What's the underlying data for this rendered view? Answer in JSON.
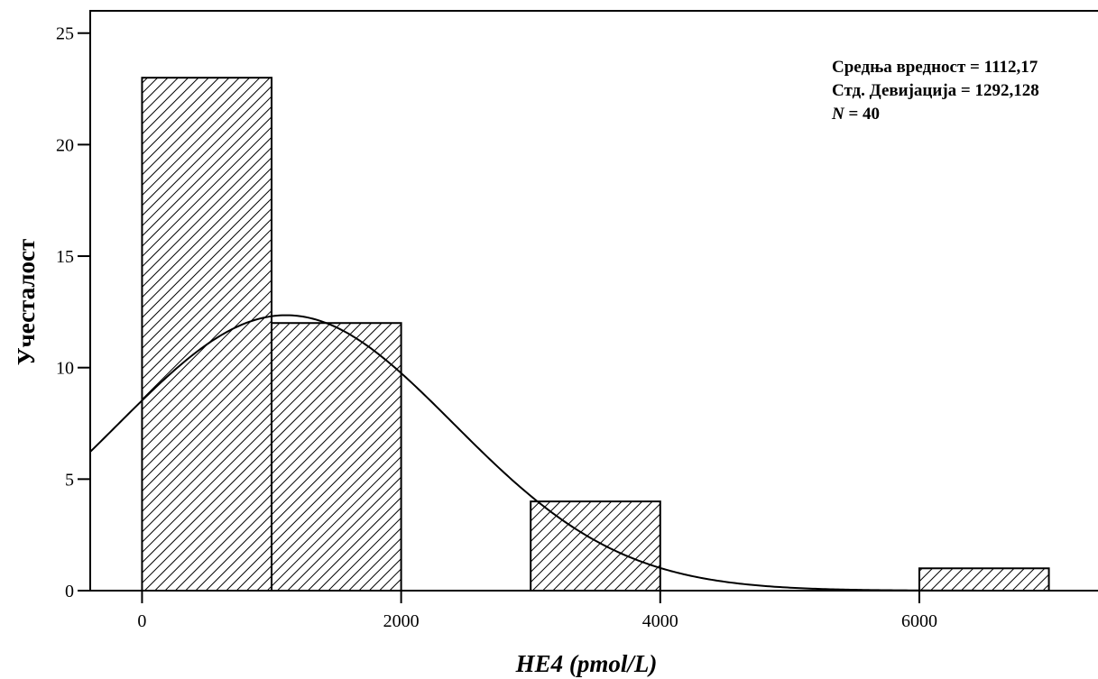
{
  "chart_data": {
    "type": "bar",
    "subtype": "histogram",
    "xlabel": "HE4 (pmol/L)",
    "ylabel": "Учесталост",
    "xlim": [
      -400,
      7400
    ],
    "ylim": [
      0,
      26
    ],
    "x_ticks": [
      0,
      2000,
      4000,
      6000
    ],
    "y_ticks": [
      0,
      5,
      10,
      15,
      20,
      25
    ],
    "bins": [
      {
        "start": 0,
        "end": 1000,
        "count": 23
      },
      {
        "start": 1000,
        "end": 2000,
        "count": 12
      },
      {
        "start": 2000,
        "end": 3000,
        "count": 0
      },
      {
        "start": 3000,
        "end": 4000,
        "count": 4
      },
      {
        "start": 4000,
        "end": 5000,
        "count": 0
      },
      {
        "start": 5000,
        "end": 6000,
        "count": 0
      },
      {
        "start": 6000,
        "end": 7000,
        "count": 1
      }
    ],
    "normal_curve": {
      "mean": 1112.17,
      "std": 1292.128,
      "n": 40,
      "bin_width": 1000
    },
    "bar_fill": "diagonal-hatch",
    "stats_box": {
      "mean_line": "Средња вредност = 1112,17",
      "std_line": "Стд. Девијација = 1292,128",
      "n_symbol": "N",
      "n_rest": " = 40"
    },
    "grid": false
  }
}
